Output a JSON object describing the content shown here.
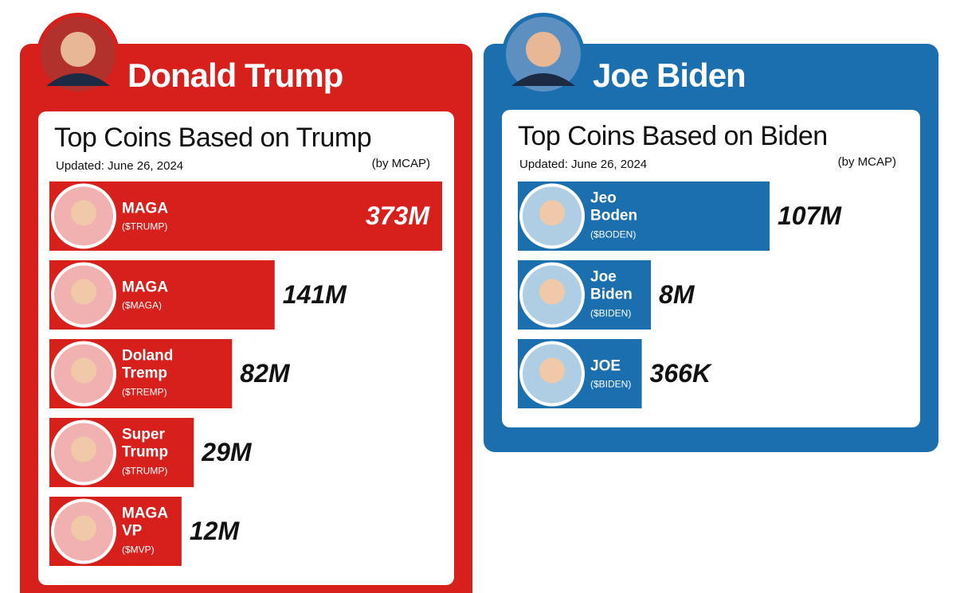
{
  "chart_data": [
    {
      "type": "bar",
      "person": "Donald Trump",
      "title": "Top Coins Based on Trump",
      "updated": "Updated: June 26, 2024",
      "note": "(by MCAP)",
      "categories": [
        "MAGA",
        "MAGA",
        "Doland Tremp",
        "Super Trump",
        "MAGA VP"
      ],
      "tickers": [
        "($TRUMP)",
        "($MAGA)",
        "($TREMP)",
        "($TRUMP)",
        "($MVP)"
      ],
      "values": [
        373,
        141,
        82,
        29,
        12
      ],
      "value_labels": [
        "373M",
        "141M",
        "82M",
        "29M",
        "12M"
      ],
      "color": "#d71f1c"
    },
    {
      "type": "bar",
      "person": "Joe Biden",
      "title": "Top Coins Based on Biden",
      "updated": "Updated: June 26, 2024",
      "note": "(by MCAP)",
      "categories": [
        "Jeo Boden",
        "Joe Biden",
        "JOE"
      ],
      "tickers": [
        "($BODEN)",
        "($BIDEN)",
        "($BIDEN)"
      ],
      "values": [
        107,
        8,
        0.366
      ],
      "value_labels": [
        "107M",
        "8M",
        "366K"
      ],
      "color": "#1b6fae"
    }
  ]
}
